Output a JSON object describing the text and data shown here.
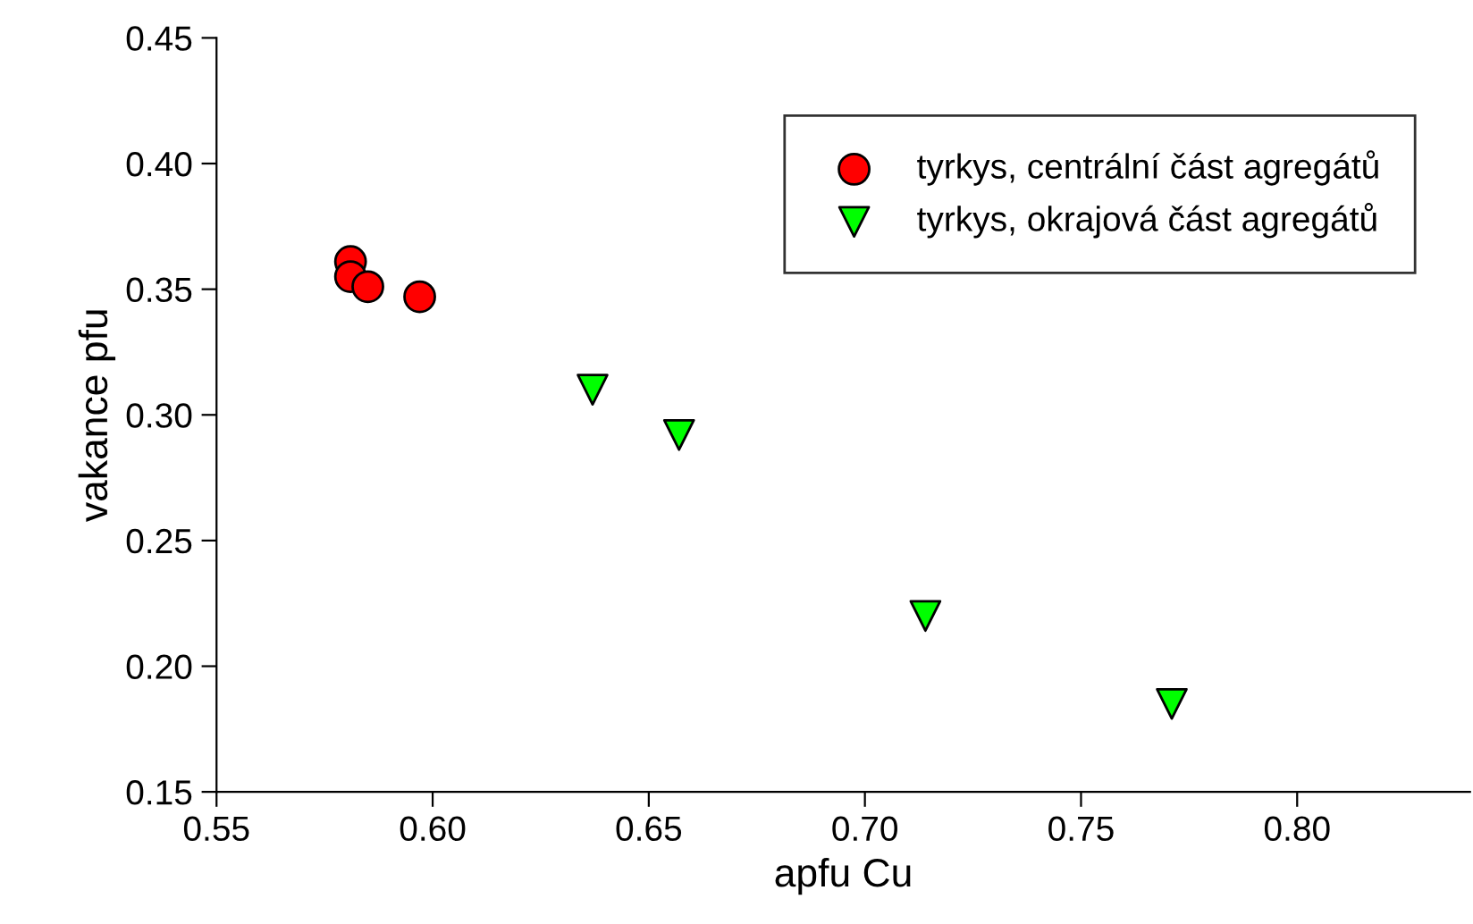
{
  "chart_data": {
    "type": "scatter",
    "xlabel": "apfu Cu",
    "ylabel": "vakance pfu",
    "xlim": [
      0.55,
      0.84
    ],
    "xticks": [
      {
        "value": 0.55,
        "label": "0.55"
      },
      {
        "value": 0.6,
        "label": "0.60"
      },
      {
        "value": 0.65,
        "label": "0.65"
      },
      {
        "value": 0.7,
        "label": "0.70"
      },
      {
        "value": 0.75,
        "label": "0.75"
      },
      {
        "value": 0.8,
        "label": "0.80"
      }
    ],
    "ylim": [
      0.15,
      0.45
    ],
    "yticks": [
      {
        "value": 0.15,
        "label": "0.15"
      },
      {
        "value": 0.2,
        "label": "0.20"
      },
      {
        "value": 0.25,
        "label": "0.25"
      },
      {
        "value": 0.3,
        "label": "0.30"
      },
      {
        "value": 0.35,
        "label": "0.35"
      },
      {
        "value": 0.4,
        "label": "0.40"
      },
      {
        "value": 0.45,
        "label": "0.45"
      }
    ],
    "legend": "top right",
    "grid": false,
    "series": [
      {
        "name": "tyrkys, centrální část agregátů",
        "color": "#ff0000",
        "marker": "circle",
        "x": [
          0.581,
          0.581,
          0.585,
          0.597
        ],
        "values": [
          0.361,
          0.355,
          0.351,
          0.347
        ]
      },
      {
        "name": "tyrkys, okrajová část agregátů",
        "color": "#00ff00",
        "marker": "triangle",
        "x": [
          0.637,
          0.657,
          0.714,
          0.771
        ],
        "values": [
          0.31,
          0.292,
          0.22,
          0.185
        ]
      }
    ]
  }
}
